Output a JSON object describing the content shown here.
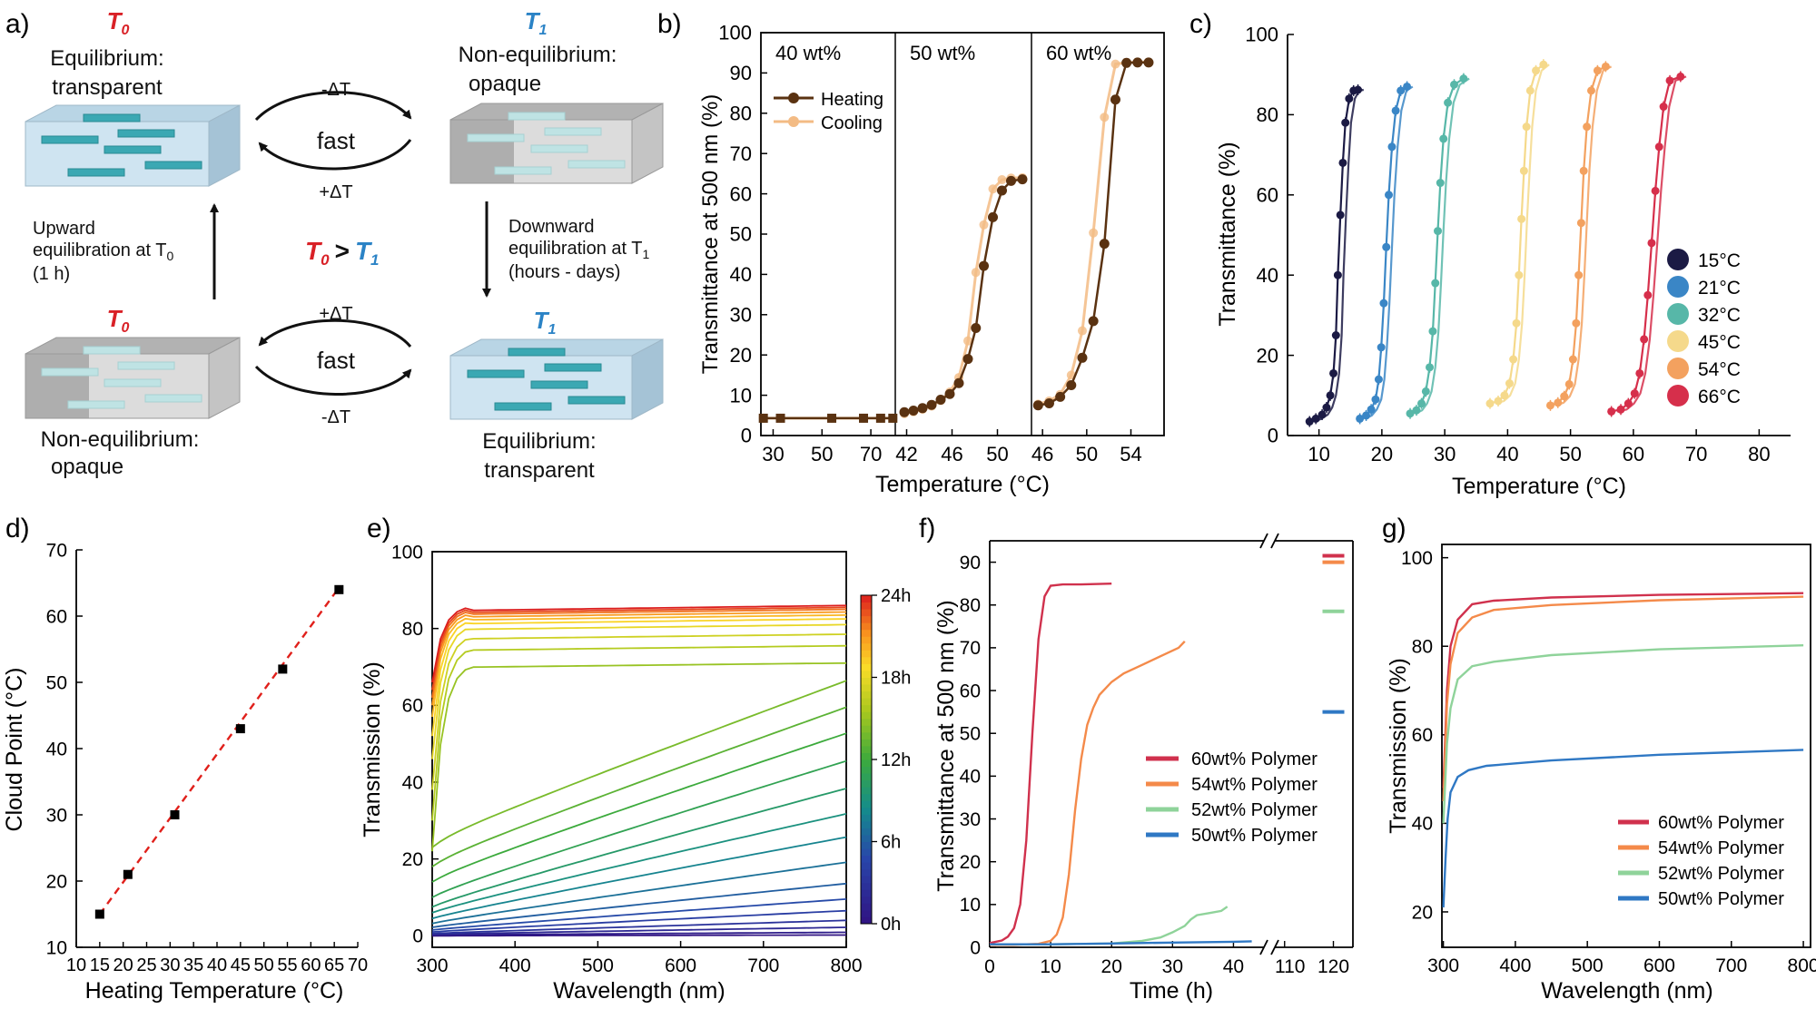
{
  "figure": {
    "panel_labels": [
      "a)",
      "b)",
      "c)",
      "d)",
      "e)",
      "f)",
      "g)"
    ],
    "colors": {
      "heating": "#5a3211",
      "cooling": "#f3bb84",
      "c15": "#1b1a44",
      "c21": "#3a86c6",
      "c32": "#57b7a8",
      "c45": "#f5d98b",
      "c54": "#f3a15f",
      "c66": "#d62f4b",
      "p60": "#d0314d",
      "p54": "#f48a4a",
      "p52": "#8fd39a",
      "p50": "#2f78c4",
      "hot_text": "#d92127",
      "cold_text": "#2b83c6"
    }
  },
  "schematic": {
    "top_left": {
      "symbol": "T",
      "sub": "0",
      "line1": "Equilibrium:",
      "line2": "transparent"
    },
    "top_right": {
      "symbol": "T",
      "sub": "1",
      "line1": "Non-equilibrium:",
      "line2": "opaque"
    },
    "bottom_left": {
      "symbol": "T",
      "sub": "0",
      "line1": "Non-equilibrium:",
      "line2": "opaque"
    },
    "bottom_right": {
      "symbol": "T",
      "sub": "1",
      "line1": "Equilibrium:",
      "line2": "transparent"
    },
    "arrow_top_upper": "-ΔT",
    "arrow_top_mid": "fast",
    "arrow_top_lower": "+ΔT",
    "arrow_bottom_upper": "+ΔT",
    "arrow_bottom_mid": "fast",
    "arrow_bottom_lower": "-ΔT",
    "upward": [
      "Upward",
      "equilibration at T",
      "(1 h)"
    ],
    "upward_sub": "0",
    "downward": [
      "Downward",
      "equilibration at T",
      "(hours - days)"
    ],
    "downward_sub": "1",
    "relation": {
      "left": "T",
      "left_sub": "0",
      "op": ">",
      "right": "T",
      "right_sub": "1"
    }
  },
  "chart_data": [
    {
      "panel": "b",
      "type": "line",
      "ylabel": "Transmittance at 500 nm (%)",
      "xlabel": "Temperature (°C)",
      "ylim": [
        0,
        100
      ],
      "yticks": [
        "0",
        "10",
        "20",
        "30",
        "40",
        "50",
        "60",
        "70",
        "80",
        "90",
        "100"
      ],
      "legend": [
        "Heating",
        "Cooling"
      ],
      "subpanels": [
        {
          "label": "40 wt%",
          "xlim": [
            25,
            80
          ],
          "xticks": [
            30,
            50,
            70
          ],
          "heating": {
            "x": [
              26,
              33,
              54,
              67,
              74,
              79
            ],
            "y": [
              4.3,
              4.3,
              4.3,
              4.3,
              4.3,
              4.3
            ]
          },
          "cooling": {
            "x": [
              26,
              33,
              54,
              67,
              74,
              79
            ],
            "y": [
              4.3,
              4.3,
              4.3,
              4.3,
              4.3,
              4.3
            ]
          }
        },
        {
          "label": "50 wt%",
          "xlim": [
            41,
            53
          ],
          "xticks": [
            42,
            46,
            50
          ],
          "heating": {
            "x": [
              41.8,
              42.6,
              43.4,
              44.2,
              45,
              45.8,
              46.6,
              47.4,
              48.1,
              48.8,
              49.6,
              50.4,
              51.2,
              52.2
            ],
            "y": [
              5.8,
              6.2,
              6.8,
              7.6,
              8.9,
              10.3,
              13,
              19,
              26.7,
              42.1,
              54.2,
              60.8,
              63.2,
              63.6
            ]
          },
          "cooling": {
            "x": [
              41.8,
              42.6,
              43.4,
              44.2,
              45,
              45.8,
              46.6,
              47.4,
              48.1,
              48.8,
              49.6,
              50.4,
              51.2,
              52.2
            ],
            "y": [
              5.4,
              5.9,
              6.5,
              7.3,
              8.7,
              10.8,
              14.4,
              23.5,
              40.5,
              52.3,
              61.2,
              63.5,
              63.9,
              64
            ]
          }
        },
        {
          "label": "60 wt%",
          "xlim": [
            45,
            57
          ],
          "xticks": [
            46,
            50,
            54
          ],
          "heating": {
            "x": [
              45.6,
              46.6,
              47.6,
              48.6,
              49.6,
              50.6,
              51.6,
              52.6,
              53.6,
              54.6,
              55.6
            ],
            "y": [
              7.5,
              8,
              9.6,
              12.5,
              19.3,
              28.4,
              47.6,
              83.4,
              92.5,
              92.6,
              92.6
            ]
          },
          "cooling": {
            "x": [
              45.6,
              46.6,
              47.6,
              48.6,
              49.6,
              50.6,
              51.6,
              52.6,
              53.6,
              54.6,
              55.6
            ],
            "y": [
              7.8,
              8.6,
              10.2,
              15,
              26,
              50.3,
              79,
              92.2,
              92.6,
              92.7,
              92.7
            ]
          }
        }
      ]
    },
    {
      "panel": "c",
      "type": "line",
      "ylabel": "Transmittance (%)",
      "xlabel": "Temperature (°C)",
      "xlim": [
        5,
        85
      ],
      "ylim": [
        0,
        100
      ],
      "xticks": [
        10,
        20,
        30,
        40,
        50,
        60,
        70,
        80
      ],
      "yticks": [
        0,
        20,
        40,
        60,
        80,
        100
      ],
      "legend_position": "right",
      "series": [
        {
          "name": "15°C",
          "x": [
            8.5,
            9.5,
            10.5,
            11.2,
            11.8,
            12.3,
            12.7,
            13,
            13.4,
            13.8,
            14.2,
            14.8,
            15.5,
            16.2
          ],
          "y": [
            3.5,
            4.2,
            5.2,
            7,
            10,
            15.5,
            25,
            40,
            55,
            68,
            78,
            84,
            86,
            86.2
          ]
        },
        {
          "name": "21°C",
          "x": [
            16.5,
            17.5,
            18.3,
            19,
            19.5,
            19.9,
            20.3,
            20.7,
            21.1,
            21.6,
            22.2,
            23,
            24
          ],
          "y": [
            4.2,
            5,
            6.5,
            9,
            14,
            22,
            33,
            47,
            60,
            72,
            81,
            86,
            87
          ]
        },
        {
          "name": "32°C",
          "x": [
            24.5,
            25.5,
            26.3,
            27,
            27.6,
            28.1,
            28.5,
            28.9,
            29.3,
            29.8,
            30.5,
            31.5,
            33
          ],
          "y": [
            5.5,
            6.3,
            8,
            11,
            17,
            26,
            38,
            51,
            63,
            74,
            83,
            87.5,
            89
          ]
        },
        {
          "name": "45°C",
          "x": [
            37.2,
            38.5,
            39.5,
            40.3,
            40.9,
            41.4,
            41.8,
            42.2,
            42.6,
            43,
            43.6,
            44.5,
            45.7
          ],
          "y": [
            8,
            8.6,
            10,
            13,
            19,
            28,
            40,
            54,
            66,
            77,
            86,
            91,
            92.5
          ]
        },
        {
          "name": "54°C",
          "x": [
            46.8,
            48,
            49,
            49.8,
            50.4,
            50.9,
            51.3,
            51.7,
            52.1,
            52.6,
            53.3,
            54.3,
            55.6
          ],
          "y": [
            7.5,
            8.2,
            9.8,
            12.8,
            19,
            28,
            40,
            53,
            66,
            77,
            86,
            91,
            92
          ]
        },
        {
          "name": "66°C",
          "x": [
            56.5,
            58,
            59.2,
            60.2,
            61,
            61.7,
            62.3,
            62.9,
            63.5,
            64.1,
            64.8,
            65.8,
            67.5
          ],
          "y": [
            6,
            6.5,
            8,
            10.5,
            15.5,
            24,
            35,
            48,
            61,
            72,
            82,
            88.5,
            89.5
          ]
        }
      ]
    },
    {
      "panel": "d",
      "type": "scatter",
      "ylabel": "Cloud Point (°C)",
      "xlabel": "Heating Temperature (°C)",
      "xlim": [
        10,
        70
      ],
      "ylim": [
        10,
        70
      ],
      "xticks": [
        10,
        15,
        20,
        25,
        30,
        35,
        40,
        45,
        50,
        55,
        60,
        65,
        70
      ],
      "yticks": [
        10,
        20,
        30,
        40,
        50,
        60,
        70
      ],
      "x": [
        15,
        21,
        31,
        45,
        54,
        66
      ],
      "y": [
        15,
        21,
        30,
        43,
        52,
        64
      ],
      "fit": {
        "x": [
          15,
          66
        ],
        "y": [
          15,
          64.3
        ]
      }
    },
    {
      "panel": "e",
      "type": "line",
      "ylabel": "Transmission (%)",
      "xlabel": "Wavelength (nm)",
      "xlim": [
        300,
        800
      ],
      "ylim": [
        -3,
        100
      ],
      "xticks": [
        300,
        400,
        500,
        600,
        700,
        800
      ],
      "yticks": [
        0,
        20,
        40,
        60,
        80,
        100
      ],
      "colorbar": {
        "labels": [
          "0h",
          "6h",
          "12h",
          "18h",
          "24h"
        ],
        "max_hours": 24
      },
      "curves": [
        {
          "hours": 0,
          "start": 0,
          "end": 0.2,
          "knee": 0
        },
        {
          "hours": 1,
          "start": 0.2,
          "end": 0.9,
          "knee": 0
        },
        {
          "hours": 2,
          "start": 0.4,
          "end": 2.2,
          "knee": 0
        },
        {
          "hours": 3,
          "start": 0.6,
          "end": 4,
          "knee": 0.1
        },
        {
          "hours": 4,
          "start": 1,
          "end": 6.5,
          "knee": 0.3
        },
        {
          "hours": 5,
          "start": 1.5,
          "end": 9.5,
          "knee": 0.5
        },
        {
          "hours": 6,
          "start": 2.2,
          "end": 13.5,
          "knee": 0.8
        },
        {
          "hours": 7,
          "start": 3.2,
          "end": 19,
          "knee": 1.2
        },
        {
          "hours": 8,
          "start": 4.5,
          "end": 25.5,
          "knee": 1.8
        },
        {
          "hours": 9,
          "start": 6,
          "end": 31.5,
          "knee": 2.5
        },
        {
          "hours": 10,
          "start": 7.5,
          "end": 38,
          "knee": 3.5
        },
        {
          "hours": 11,
          "start": 10,
          "end": 45,
          "knee": 5
        },
        {
          "hours": 12,
          "start": 14,
          "end": 52,
          "knee": 7
        },
        {
          "hours": 13,
          "start": 18,
          "end": 58.5,
          "knee": 10
        },
        {
          "hours": 14,
          "start": 23,
          "end": 65,
          "knee": 14
        },
        {
          "hours": 15,
          "start": 32,
          "end": 71,
          "knee": 22
        },
        {
          "hours": 16,
          "start": 40,
          "end": 75.5,
          "knee": 30
        },
        {
          "hours": 17,
          "start": 47,
          "end": 78.5,
          "knee": 38
        },
        {
          "hours": 18,
          "start": 53,
          "end": 81,
          "knee": 46
        },
        {
          "hours": 19,
          "start": 57,
          "end": 82.5,
          "knee": 52
        },
        {
          "hours": 20,
          "start": 59,
          "end": 83.5,
          "knee": 57
        },
        {
          "hours": 21,
          "start": 61,
          "end": 84.3,
          "knee": 60
        },
        {
          "hours": 22,
          "start": 62,
          "end": 85,
          "knee": 62
        },
        {
          "hours": 23,
          "start": 63,
          "end": 85.5,
          "knee": 64
        },
        {
          "hours": 24,
          "start": 64,
          "end": 86,
          "knee": 66
        }
      ]
    },
    {
      "panel": "f",
      "type": "line",
      "ylabel": "Transmittance at 500 nm (%)",
      "xlabel": "Time (h)",
      "xlim": [
        0,
        45
      ],
      "ylim": [
        0,
        95
      ],
      "break_xlim": [
        108,
        124
      ],
      "break_start_label": "110",
      "xticks": [
        "0",
        "10",
        "20",
        "30",
        "40"
      ],
      "break_ticks": [
        "110",
        "120"
      ],
      "yticks": [
        "0",
        "10",
        "20",
        "30",
        "40",
        "50",
        "60",
        "70",
        "80",
        "90"
      ],
      "series": [
        {
          "name": "60wt% Polymer",
          "x": [
            0,
            2,
            3,
            4,
            5,
            6,
            7,
            8,
            9,
            10,
            12,
            15,
            20
          ],
          "y": [
            1,
            1.6,
            2.5,
            4.5,
            10,
            25,
            50,
            72,
            82,
            84.5,
            84.8,
            84.8,
            85
          ],
          "end_value": 91.5
        },
        {
          "name": "54wt% Polymer",
          "x": [
            0,
            4,
            8,
            10,
            11,
            12,
            13,
            14,
            15,
            16,
            17,
            18,
            20,
            22,
            25,
            28,
            31,
            32
          ],
          "y": [
            0.6,
            0.6,
            0.8,
            1.5,
            3,
            7,
            17,
            32,
            44,
            52,
            56,
            59,
            62,
            64,
            66,
            68,
            70,
            71.5
          ],
          "end_value": 90
        },
        {
          "name": "52wt% Polymer",
          "x": [
            0,
            10,
            20,
            25,
            28,
            30,
            32,
            33,
            34,
            36,
            38,
            39
          ],
          "y": [
            0.7,
            0.7,
            0.9,
            1.5,
            2.3,
            3.5,
            5,
            6.5,
            7.5,
            8,
            8.5,
            9.5
          ],
          "end_value": 78.5
        },
        {
          "name": "50wt% Polymer",
          "x": [
            0,
            10,
            20,
            30,
            40,
            43
          ],
          "y": [
            0.7,
            0.7,
            0.9,
            1.1,
            1.3,
            1.4
          ],
          "end_value": 55
        }
      ]
    },
    {
      "panel": "g",
      "type": "line",
      "ylabel": "Transmission (%)",
      "xlabel": "Wavelength (nm)",
      "xlim": [
        298,
        810
      ],
      "ylim": [
        12,
        103
      ],
      "xticks": [
        300,
        400,
        500,
        600,
        700,
        800
      ],
      "yticks": [
        20,
        40,
        60,
        80,
        100
      ],
      "series": [
        {
          "name": "60wt% Polymer",
          "x": [
            300,
            305,
            310,
            320,
            340,
            370,
            450,
            600,
            800
          ],
          "y": [
            48,
            70,
            80,
            86,
            89.5,
            90.3,
            91,
            91.6,
            92
          ]
        },
        {
          "name": "54wt% Polymer",
          "x": [
            300,
            305,
            310,
            320,
            340,
            370,
            450,
            600,
            800
          ],
          "y": [
            45,
            67,
            76,
            83,
            86.5,
            88.2,
            89.3,
            90.4,
            91.2
          ]
        },
        {
          "name": "52wt% Polymer",
          "x": [
            300,
            305,
            310,
            320,
            340,
            370,
            450,
            600,
            800
          ],
          "y": [
            40,
            58,
            66,
            72.5,
            75.5,
            76.5,
            78,
            79.3,
            80.2
          ]
        },
        {
          "name": "50wt% Polymer",
          "x": [
            300,
            303,
            306,
            310,
            320,
            335,
            360,
            450,
            600,
            800
          ],
          "y": [
            21,
            32,
            41,
            47,
            50.5,
            52,
            53,
            54.2,
            55.5,
            56.6
          ]
        }
      ]
    }
  ]
}
